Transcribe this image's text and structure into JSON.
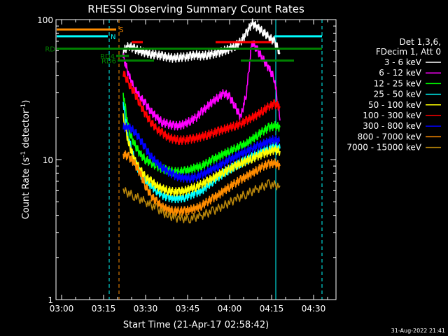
{
  "chart_data": {
    "type": "line",
    "title": "RHESSI Observing Summary Count Rates",
    "xlabel": "Start Time (21-Apr-17 02:58:42)",
    "ylabel_main": "Count Rate (s",
    "ylabel_sup1": "-1",
    "ylabel_mid": " detector",
    "ylabel_sup2": "-1",
    "ylabel_end": ")",
    "y_scale": "log",
    "ylim": [
      1,
      100
    ],
    "y_ticks": [
      {
        "value": 1,
        "label": "1"
      },
      {
        "value": 10,
        "label": "10"
      },
      {
        "value": 100,
        "label": "100"
      }
    ],
    "xlim_minutes": [
      -2,
      98
    ],
    "x_ticks": [
      {
        "value": 0,
        "label": "03:00"
      },
      {
        "value": 15,
        "label": "03:15"
      },
      {
        "value": 30,
        "label": "03:30"
      },
      {
        "value": 45,
        "label": "03:45"
      },
      {
        "value": 60,
        "label": "04:00"
      },
      {
        "value": 75,
        "label": "04:15"
      },
      {
        "value": 90,
        "label": "04:30"
      }
    ],
    "legend": {
      "header": [
        "Det 1,3,6,",
        "FDecim 1, Att 0"
      ],
      "placement": "right"
    },
    "series": [
      {
        "name": "3 - 6 keV",
        "color": "#ffffff",
        "x": [
          22,
          24,
          26,
          28,
          30,
          32,
          34,
          36,
          38,
          40,
          42,
          44,
          46,
          48,
          50,
          52,
          54,
          56,
          58,
          60,
          62,
          64,
          66,
          68,
          70,
          72,
          74,
          76,
          78
        ],
        "y": [
          60,
          65,
          62,
          60,
          58,
          57,
          56,
          55,
          54,
          53,
          54,
          54,
          55,
          56,
          55,
          56,
          57,
          58,
          60,
          62,
          65,
          70,
          80,
          95,
          88,
          82,
          75,
          70,
          58
        ]
      },
      {
        "name": "6 - 12 keV",
        "color": "#ff00ff",
        "x": [
          22,
          24,
          26,
          28,
          30,
          32,
          34,
          36,
          38,
          40,
          42,
          44,
          46,
          48,
          50,
          52,
          54,
          56,
          58,
          60,
          62,
          64,
          66,
          68,
          70,
          72,
          74,
          76,
          78
        ],
        "y": [
          55,
          40,
          32,
          28,
          25,
          22,
          20,
          18.5,
          18,
          17.5,
          17.5,
          18,
          19,
          20,
          22,
          24,
          26,
          28,
          30,
          28,
          24,
          20,
          30,
          70,
          60,
          52,
          45,
          38,
          19
        ]
      },
      {
        "name": "12 - 25 keV",
        "color": "#00ff00",
        "x": [
          22,
          24,
          26,
          28,
          30,
          32,
          34,
          36,
          38,
          40,
          42,
          44,
          46,
          48,
          50,
          52,
          54,
          56,
          58,
          60,
          62,
          64,
          66,
          68,
          70,
          72,
          74,
          76,
          78
        ],
        "y": [
          30,
          16,
          13,
          11,
          10,
          9.5,
          9,
          8.6,
          8.4,
          8.2,
          8.2,
          8.3,
          8.5,
          8.8,
          9,
          9.5,
          10,
          10.5,
          11,
          11.5,
          12,
          12.5,
          13,
          14,
          15,
          16,
          17,
          17.5,
          17
        ]
      },
      {
        "name": "25 - 50 keV",
        "color": "#00ffff",
        "x": [
          22,
          24,
          26,
          28,
          30,
          32,
          34,
          36,
          38,
          40,
          42,
          44,
          46,
          48,
          50,
          52,
          54,
          56,
          58,
          60,
          62,
          64,
          66,
          68,
          70,
          72,
          74,
          76,
          78
        ],
        "y": [
          25,
          14,
          10,
          8,
          7,
          6.5,
          6,
          5.6,
          5.4,
          5.3,
          5.3,
          5.4,
          5.6,
          5.8,
          6,
          6.5,
          7,
          7.5,
          8,
          8.5,
          9,
          9.5,
          10,
          10.5,
          11,
          11.5,
          12,
          12.5,
          12
        ]
      },
      {
        "name": "50 - 100 keV",
        "color": "#ffff00",
        "x": [
          22,
          24,
          26,
          28,
          30,
          32,
          34,
          36,
          38,
          40,
          42,
          44,
          46,
          48,
          50,
          52,
          54,
          56,
          58,
          60,
          62,
          64,
          66,
          68,
          70,
          72,
          74,
          76,
          78
        ],
        "y": [
          20,
          13,
          10,
          8.5,
          7.5,
          7,
          6.5,
          6.2,
          6,
          5.9,
          5.9,
          6,
          6.2,
          6.4,
          6.7,
          7,
          7.4,
          7.8,
          8.2,
          8.6,
          9,
          9.4,
          9.8,
          10.2,
          10.6,
          11,
          11.4,
          11.8,
          11.5
        ]
      },
      {
        "name": "100 - 300 keV",
        "color": "#ff0000",
        "x": [
          22,
          24,
          26,
          28,
          30,
          32,
          34,
          36,
          38,
          40,
          42,
          44,
          46,
          48,
          50,
          52,
          54,
          56,
          58,
          60,
          62,
          64,
          66,
          68,
          70,
          72,
          74,
          76,
          78
        ],
        "y": [
          42,
          35,
          30,
          25,
          21,
          18.5,
          16.5,
          15.5,
          14.5,
          14,
          13.8,
          13.8,
          14,
          14.3,
          14.6,
          15,
          15.5,
          16,
          16.5,
          17,
          17.5,
          18,
          19,
          20,
          21,
          22.5,
          24,
          25,
          24
        ]
      },
      {
        "name": "300 - 800 keV",
        "color": "#0000ff",
        "x": [
          22,
          24,
          26,
          28,
          30,
          32,
          34,
          36,
          38,
          40,
          42,
          44,
          46,
          48,
          50,
          52,
          54,
          56,
          58,
          60,
          62,
          64,
          66,
          68,
          70,
          72,
          74,
          76,
          78
        ],
        "y": [
          17,
          17,
          16,
          14,
          12,
          10.5,
          9.5,
          8.8,
          8.2,
          7.8,
          7.5,
          7.4,
          7.4,
          7.5,
          7.8,
          8.2,
          8.6,
          9,
          9.5,
          10,
          10.5,
          11,
          11.5,
          12,
          12.5,
          13,
          13.5,
          14,
          13.5
        ]
      },
      {
        "name": "800 - 7000 keV",
        "color": "#ff8c00",
        "x": [
          22,
          24,
          26,
          28,
          30,
          32,
          34,
          36,
          38,
          40,
          42,
          44,
          46,
          48,
          50,
          52,
          54,
          56,
          58,
          60,
          62,
          64,
          66,
          68,
          70,
          72,
          74,
          76,
          78
        ],
        "y": [
          11,
          10.5,
          9.5,
          8,
          6.5,
          5.5,
          5,
          4.6,
          4.4,
          4.3,
          4.3,
          4.3,
          4.4,
          4.5,
          4.7,
          5,
          5.3,
          5.6,
          6,
          6.4,
          6.8,
          7.2,
          7.6,
          8,
          8.5,
          9,
          9.3,
          9.5,
          9
        ]
      },
      {
        "name": "7000 - 15000 keV",
        "color": "#b8860b",
        "x": [
          22,
          26,
          30,
          34,
          38,
          42,
          46,
          50,
          54,
          58,
          62,
          66,
          70,
          74,
          78
        ],
        "y": [
          6,
          5.5,
          5,
          4.5,
          4,
          3.8,
          3.8,
          4,
          4.3,
          4.7,
          5.2,
          5.7,
          6.2,
          6.7,
          6.5
        ]
      }
    ],
    "status_bars": [
      {
        "label": "S",
        "color": "#ff8c00",
        "x_start": -2,
        "x_end": 19.5,
        "y": 85
      },
      {
        "label": "N",
        "color": "#00ffff",
        "x_start": -2,
        "x_end": 16.5,
        "y": 76
      },
      {
        "label": "",
        "color": "#00ffff",
        "x_start": 76,
        "x_end": 93,
        "y": 76
      },
      {
        "label": "",
        "color": "#ff0000",
        "x_start": 25,
        "x_end": 29,
        "y": 69
      },
      {
        "label": "",
        "color": "#ff0000",
        "x_start": 55,
        "x_end": 75,
        "y": 69
      },
      {
        "label": "RD",
        "color": "#008000",
        "x_start": -2,
        "x_end": 93,
        "y": 62
      },
      {
        "label": "RD4",
        "color": "#008000",
        "x_start": 19.5,
        "x_end": 24,
        "y": 55
      },
      {
        "label": "RD6",
        "color": "#008000",
        "x_start": 20,
        "x_end": 33,
        "y": 51
      },
      {
        "label": "",
        "color": "#008000",
        "x_start": 64,
        "x_end": 83,
        "y": 51
      }
    ],
    "vertical_lines": [
      {
        "x": -2,
        "color": "#00ffff",
        "style": "solid"
      },
      {
        "x": 17,
        "color": "#00ffff",
        "style": "dashed"
      },
      {
        "x": 20.5,
        "color": "#ff8c00",
        "style": "dashed"
      },
      {
        "x": 76.5,
        "color": "#00ffff",
        "style": "solid"
      },
      {
        "x": 93,
        "color": "#00ffff",
        "style": "dashed"
      }
    ],
    "grid": false
  },
  "footer": {
    "timestamp": "31-Aug-2022 21:41"
  }
}
